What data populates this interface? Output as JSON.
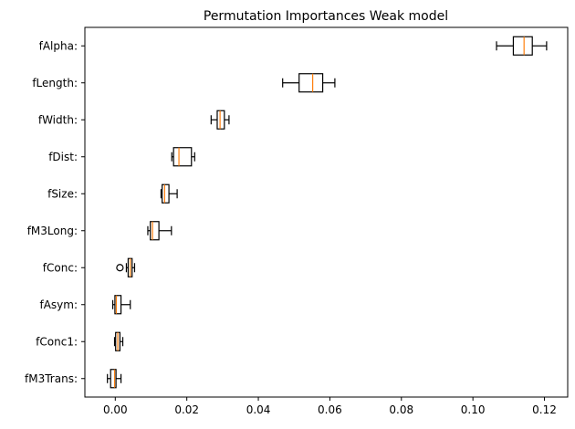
{
  "chart_data": {
    "type": "boxplot",
    "orientation": "horizontal",
    "title": "Permutation Importances Weak model",
    "xlabel": "",
    "ylabel": "",
    "xlim": [
      -0.0085,
      0.1265
    ],
    "xticks": [
      0.0,
      0.02,
      0.04,
      0.06,
      0.08,
      0.1,
      0.12
    ],
    "xtick_labels": [
      "0.00",
      "0.02",
      "0.04",
      "0.06",
      "0.08",
      "0.10",
      "0.12"
    ],
    "grid": false,
    "colors": {
      "box": "#000000",
      "median": "#ff7f0e",
      "background": "#ffffff"
    },
    "boxes": [
      {
        "label": "fAlpha:",
        "whislo": 0.1066,
        "q1": 0.1113,
        "med": 0.1143,
        "q3": 0.1166,
        "whishi": 0.1206,
        "fliers": []
      },
      {
        "label": "fLength:",
        "whislo": 0.0468,
        "q1": 0.0514,
        "med": 0.0552,
        "q3": 0.058,
        "whishi": 0.0614,
        "fliers": []
      },
      {
        "label": "fWidth:",
        "whislo": 0.0268,
        "q1": 0.0285,
        "med": 0.0293,
        "q3": 0.0305,
        "whishi": 0.0318,
        "fliers": []
      },
      {
        "label": "fDist:",
        "whislo": 0.0158,
        "q1": 0.0163,
        "med": 0.0178,
        "q3": 0.0213,
        "whishi": 0.0222,
        "fliers": []
      },
      {
        "label": "fSize:",
        "whislo": 0.0128,
        "q1": 0.0131,
        "med": 0.0138,
        "q3": 0.015,
        "whishi": 0.0173,
        "fliers": []
      },
      {
        "label": "fM3Long:",
        "whislo": 0.0091,
        "q1": 0.0098,
        "med": 0.0104,
        "q3": 0.0122,
        "whishi": 0.0157,
        "fliers": []
      },
      {
        "label": "fConc:",
        "whislo": 0.0031,
        "q1": 0.0036,
        "med": 0.0042,
        "q3": 0.0047,
        "whishi": 0.0054,
        "fliers": [
          0.0013
        ]
      },
      {
        "label": "fAsym:",
        "whislo": -0.0007,
        "q1": -0.0001,
        "med": 0.0003,
        "q3": 0.0016,
        "whishi": 0.0042,
        "fliers": []
      },
      {
        "label": "fConc1:",
        "whislo": -0.0002,
        "q1": 0.0001,
        "med": 0.0007,
        "q3": 0.0013,
        "whishi": 0.0021,
        "fliers": []
      },
      {
        "label": "fM3Trans:",
        "whislo": -0.0022,
        "q1": -0.0013,
        "med": -0.0002,
        "q3": 0.0002,
        "whishi": 0.0016,
        "fliers": []
      }
    ]
  }
}
